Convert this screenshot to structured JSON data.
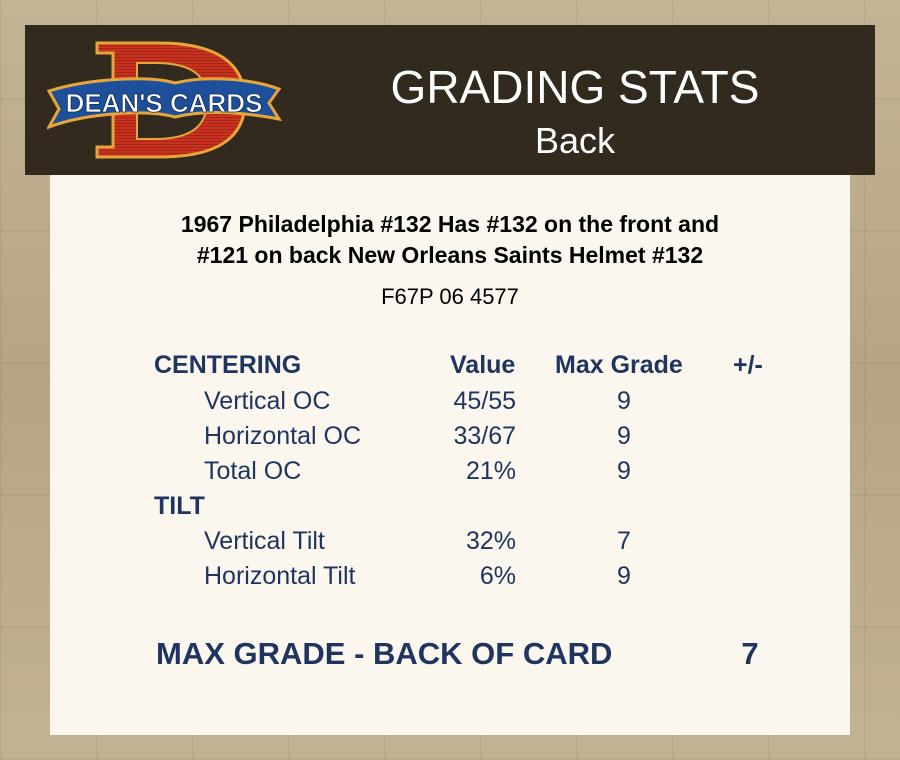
{
  "header": {
    "logo_text": "DEAN'S CARDS",
    "title": "GRADING STATS",
    "subtitle": "Back"
  },
  "card": {
    "title_line1": "1967 Philadelphia #132 Has #132 on the front and",
    "title_line2": "#121 on back  New Orleans Saints Helmet #132",
    "cert": "F67P 06 4577"
  },
  "stats": {
    "columns": {
      "value": "Value",
      "max_grade": "Max Grade",
      "plus_minus": "+/-"
    },
    "sections": [
      {
        "label": "CENTERING",
        "rows": [
          {
            "label": "Vertical OC",
            "value": "45/55",
            "max_grade": "9"
          },
          {
            "label": "Horizontal OC",
            "value": "33/67",
            "max_grade": "9"
          },
          {
            "label": "Total OC",
            "value": "21%",
            "max_grade": "9"
          }
        ]
      },
      {
        "label": "TILT",
        "rows": [
          {
            "label": "Vertical Tilt",
            "value": "32%",
            "max_grade": "7"
          },
          {
            "label": "Horizontal Tilt",
            "value": "6%",
            "max_grade": "9"
          }
        ]
      }
    ]
  },
  "summary": {
    "label": "MAX GRADE - BACK OF CARD",
    "value": "7"
  },
  "colors": {
    "header_bg": "#322a1e",
    "panel_bg": "#fbf7ee",
    "stats_text": "#1f3560",
    "logo_red": "#c8321f",
    "logo_banner": "#1e4f9a"
  }
}
